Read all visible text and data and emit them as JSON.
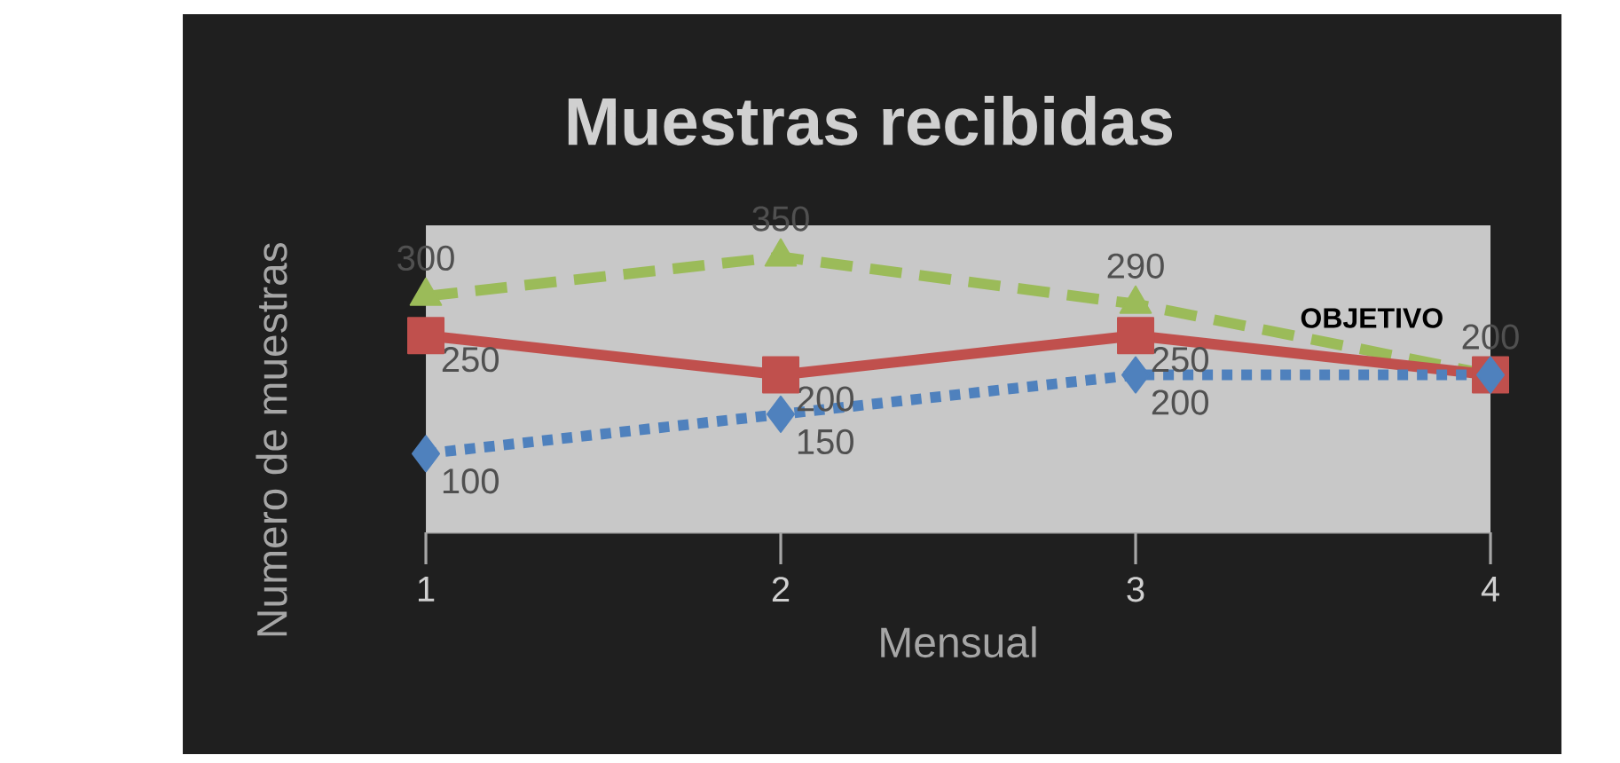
{
  "chart_data": {
    "type": "line",
    "title": "Muestras recibidas",
    "xlabel": "Mensual",
    "ylabel": "Numero de muestras",
    "x": [
      1,
      2,
      3,
      4
    ],
    "xlim": [
      1,
      4
    ],
    "xticks": [
      1,
      2,
      3,
      4
    ],
    "ylim": [
      0,
      390
    ],
    "tick_labels": "x",
    "series": [
      {
        "color": "#9bbb59",
        "values": [
          300,
          350,
          290,
          200
        ],
        "value_labels": [
          "300",
          "350",
          "290",
          "200"
        ],
        "marker": "triangle",
        "line_style": "dashed"
      },
      {
        "color": "#c0504d",
        "values": [
          250,
          200,
          250,
          200
        ],
        "value_labels": [
          "250",
          "200",
          "250",
          null
        ],
        "marker": "square",
        "line_style": "solid"
      },
      {
        "color": "#4f81bd",
        "values": [
          100,
          150,
          200,
          200
        ],
        "value_labels": [
          "100",
          "150",
          "200",
          null
        ],
        "marker": "diamond",
        "line_style": "dotted"
      }
    ],
    "annotations": [
      {
        "text": "OBJETIVO",
        "x": 4,
        "y": 200
      }
    ]
  }
}
